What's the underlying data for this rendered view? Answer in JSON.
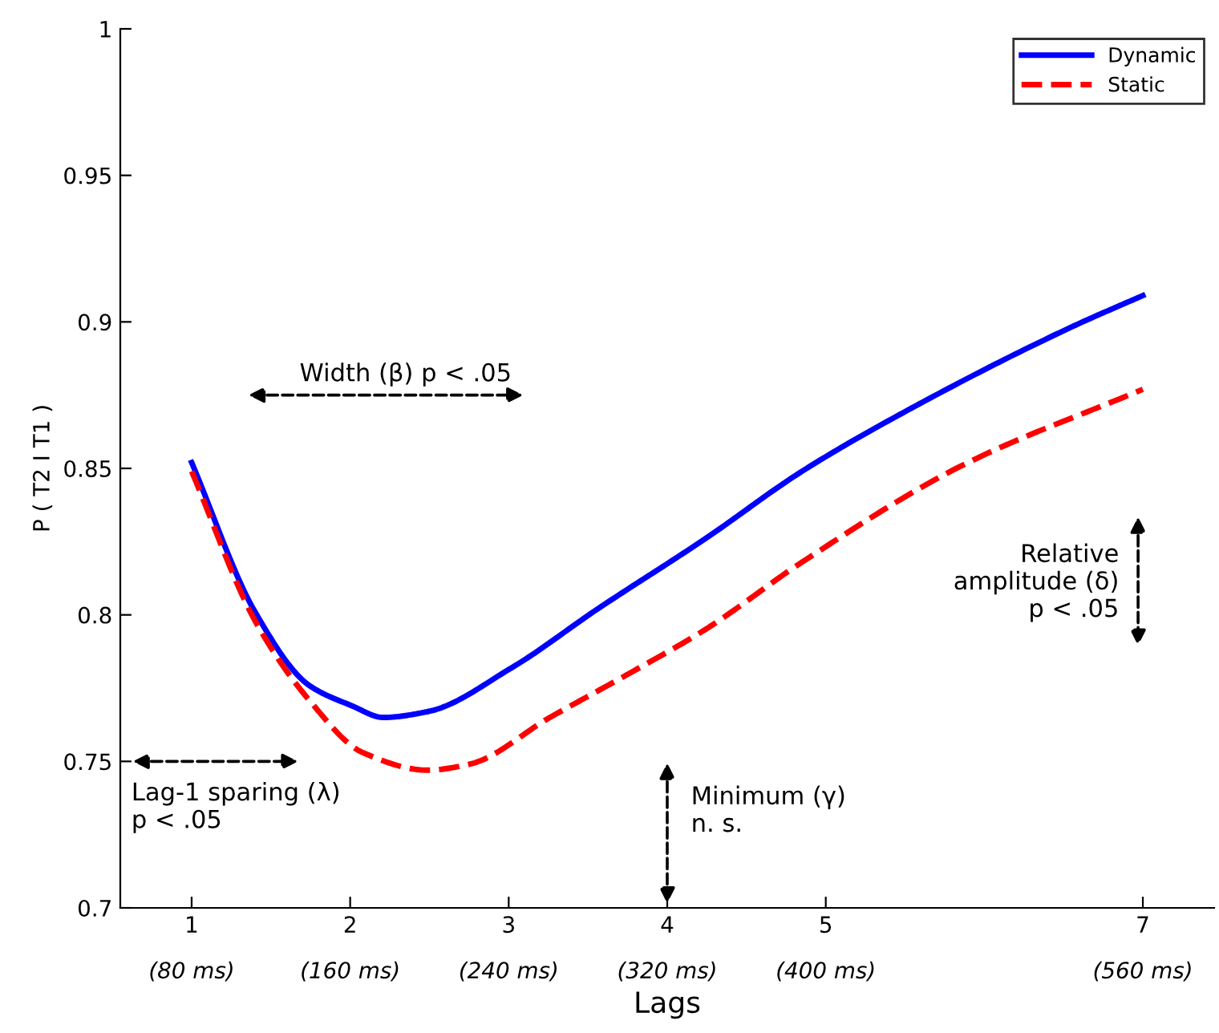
{
  "chart_data": {
    "type": "line",
    "xlabel": "Lags",
    "ylabel": "P ( T2 I T1 )",
    "xlim": [
      0.55,
      7.45
    ],
    "ylim": [
      0.7,
      1
    ],
    "xticks": [
      1,
      2,
      3,
      4,
      5,
      7
    ],
    "yticks": [
      0.7,
      0.75,
      0.8,
      0.85,
      0.9,
      0.95,
      1
    ],
    "legend": "top right",
    "grid": false,
    "series": [
      {
        "name": "Dynamic",
        "color": "#0000ff",
        "line_style": "solid",
        "x": [
          1,
          1.4,
          1.74,
          2.01,
          2.21,
          2.49,
          3.02,
          3.56,
          4.24,
          4.85,
          5.59,
          6.54,
          7
        ],
        "values": [
          0.852,
          0.801,
          0.776,
          0.769,
          0.765,
          0.767,
          0.782,
          0.802,
          0.826,
          0.849,
          0.872,
          0.898,
          0.909
        ]
      },
      {
        "name": "Static",
        "color": "#ff0000",
        "line_style": "dashed",
        "x": [
          1,
          1.4,
          1.74,
          2.08,
          2.49,
          2.75,
          3.26,
          3.76,
          4.24,
          4.85,
          5.86,
          7
        ],
        "values": [
          0.849,
          0.798,
          0.771,
          0.753,
          0.747,
          0.749,
          0.765,
          0.78,
          0.795,
          0.818,
          0.851,
          0.877
        ]
      }
    ],
    "annotations": [
      "Width (β) p < .05",
      "Lag-1 sparing (λ)\np < .05",
      "Minimum (γ)\nn. s.",
      "Relative\namplitude (δ)\np < .05",
      "(80 ms)",
      "(160 ms)",
      "(240 ms)",
      "(320 ms)",
      "(400 ms)",
      "(560 ms)"
    ]
  }
}
